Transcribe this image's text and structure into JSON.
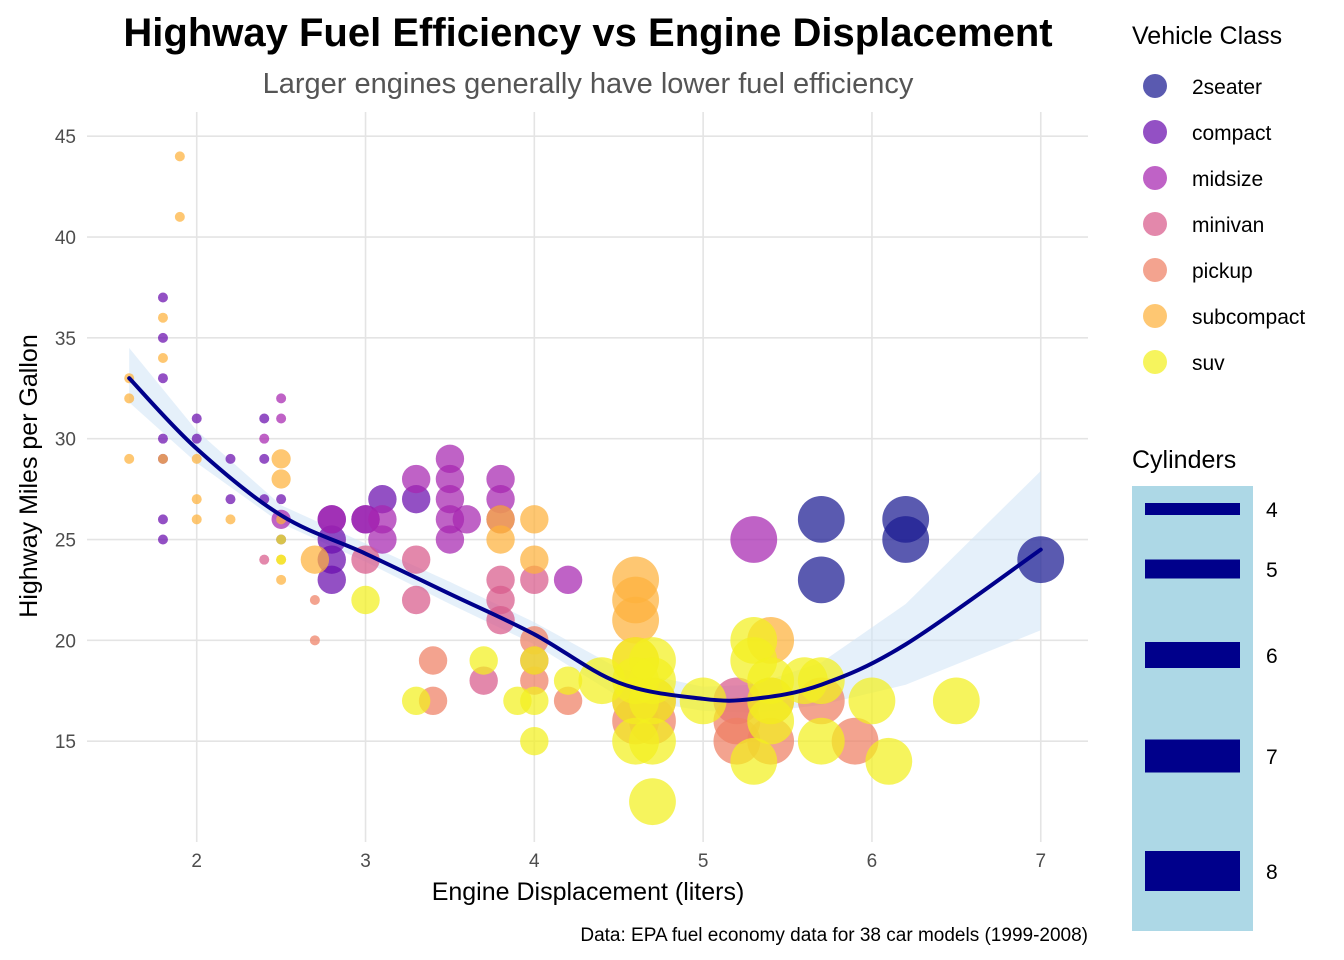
{
  "colors": {
    "background": "#ffffff",
    "grid": "#e4e4e4",
    "smooth_line": "#00008b",
    "confidence_band": "#cfe3f5",
    "size_legend_bg": "#add8e6",
    "size_legend_key": "#00008b"
  },
  "chart_data": {
    "type": "scatter",
    "title": "Highway Fuel Efficiency vs Engine Displacement",
    "subtitle": "Larger engines generally have lower fuel efficiency",
    "xlabel": "Engine Displacement (liters)",
    "ylabel": "Highway Miles per Gallon",
    "caption": "Data: EPA fuel economy data for 38 car models (1999-2008)",
    "xlim": [
      1.35,
      7.28
    ],
    "ylim": [
      10.0,
      46.2
    ],
    "x_ticks": [
      2,
      3,
      4,
      5,
      6,
      7
    ],
    "y_ticks": [
      15,
      20,
      25,
      30,
      35,
      40,
      45
    ],
    "grid": true,
    "color_legend": {
      "title": "Vehicle Class",
      "position": "top-right",
      "entries": [
        {
          "name": "2seater",
          "color": "#1a1a92"
        },
        {
          "name": "compact",
          "color": "#6a0dad"
        },
        {
          "name": "midsize",
          "color": "#a625b0"
        },
        {
          "name": "minivan",
          "color": "#d85a8a"
        },
        {
          "name": "pickup",
          "color": "#ee8064"
        },
        {
          "name": "subcompact",
          "color": "#fdb23c"
        },
        {
          "name": "suv",
          "color": "#f2f01e"
        }
      ]
    },
    "size_legend": {
      "title": "Cylinders",
      "position": "right",
      "entries": [
        {
          "label": "4",
          "value": 4
        },
        {
          "label": "5",
          "value": 5
        },
        {
          "label": "6",
          "value": 6
        },
        {
          "label": "7",
          "value": 7
        },
        {
          "label": "8",
          "value": 8
        }
      ]
    },
    "smooth": {
      "x": [
        1.6,
        2.0,
        2.5,
        3.0,
        3.5,
        4.0,
        4.5,
        5.0,
        5.3,
        5.7,
        6.2,
        7.0
      ],
      "y": [
        33.0,
        29.5,
        26.2,
        24.3,
        22.3,
        20.3,
        17.9,
        17.1,
        17.1,
        17.8,
        19.8,
        24.5
      ],
      "band_lower": [
        31.8,
        28.8,
        25.8,
        23.9,
        21.8,
        19.8,
        17.2,
        16.5,
        16.4,
        16.8,
        17.8,
        20.5
      ],
      "band_upper": [
        34.5,
        30.4,
        26.7,
        24.8,
        22.9,
        20.9,
        18.6,
        17.7,
        17.8,
        18.9,
        21.8,
        28.4
      ]
    },
    "series": [
      {
        "name": "2seater",
        "points": [
          {
            "x": 5.7,
            "y": 26,
            "cyl": 8
          },
          {
            "x": 5.7,
            "y": 23,
            "cyl": 8
          },
          {
            "x": 6.2,
            "y": 26,
            "cyl": 8
          },
          {
            "x": 6.2,
            "y": 25,
            "cyl": 8
          },
          {
            "x": 7.0,
            "y": 24,
            "cyl": 8
          }
        ]
      },
      {
        "name": "compact",
        "points": [
          {
            "x": 1.8,
            "y": 37,
            "cyl": 4
          },
          {
            "x": 1.8,
            "y": 35,
            "cyl": 4
          },
          {
            "x": 1.8,
            "y": 33,
            "cyl": 4
          },
          {
            "x": 1.8,
            "y": 30,
            "cyl": 4
          },
          {
            "x": 1.8,
            "y": 29,
            "cyl": 4
          },
          {
            "x": 1.8,
            "y": 26,
            "cyl": 4
          },
          {
            "x": 1.8,
            "y": 25,
            "cyl": 4
          },
          {
            "x": 2.0,
            "y": 31,
            "cyl": 4
          },
          {
            "x": 2.0,
            "y": 30,
            "cyl": 4
          },
          {
            "x": 2.2,
            "y": 29,
            "cyl": 4
          },
          {
            "x": 2.2,
            "y": 27,
            "cyl": 4
          },
          {
            "x": 2.4,
            "y": 31,
            "cyl": 4
          },
          {
            "x": 2.4,
            "y": 29,
            "cyl": 4
          },
          {
            "x": 2.4,
            "y": 27,
            "cyl": 4
          },
          {
            "x": 2.5,
            "y": 25,
            "cyl": 4
          },
          {
            "x": 2.5,
            "y": 27,
            "cyl": 4
          },
          {
            "x": 2.8,
            "y": 26,
            "cyl": 6
          },
          {
            "x": 2.8,
            "y": 25,
            "cyl": 6
          },
          {
            "x": 2.8,
            "y": 24,
            "cyl": 6
          },
          {
            "x": 2.8,
            "y": 23,
            "cyl": 6
          },
          {
            "x": 3.0,
            "y": 26,
            "cyl": 6
          },
          {
            "x": 3.1,
            "y": 27,
            "cyl": 6
          },
          {
            "x": 3.3,
            "y": 27,
            "cyl": 6
          }
        ]
      },
      {
        "name": "midsize",
        "points": [
          {
            "x": 2.4,
            "y": 30,
            "cyl": 4
          },
          {
            "x": 2.5,
            "y": 32,
            "cyl": 4
          },
          {
            "x": 2.5,
            "y": 31,
            "cyl": 4
          },
          {
            "x": 2.5,
            "y": 26,
            "cyl": 5
          },
          {
            "x": 2.8,
            "y": 26,
            "cyl": 6
          },
          {
            "x": 3.0,
            "y": 26,
            "cyl": 6
          },
          {
            "x": 3.1,
            "y": 26,
            "cyl": 6
          },
          {
            "x": 3.1,
            "y": 25,
            "cyl": 6
          },
          {
            "x": 3.3,
            "y": 28,
            "cyl": 6
          },
          {
            "x": 3.5,
            "y": 29,
            "cyl": 6
          },
          {
            "x": 3.5,
            "y": 28,
            "cyl": 6
          },
          {
            "x": 3.5,
            "y": 27,
            "cyl": 6
          },
          {
            "x": 3.5,
            "y": 26,
            "cyl": 6
          },
          {
            "x": 3.5,
            "y": 25,
            "cyl": 6
          },
          {
            "x": 3.6,
            "y": 26,
            "cyl": 6
          },
          {
            "x": 3.8,
            "y": 28,
            "cyl": 6
          },
          {
            "x": 3.8,
            "y": 27,
            "cyl": 6
          },
          {
            "x": 3.8,
            "y": 26,
            "cyl": 6
          },
          {
            "x": 4.2,
            "y": 23,
            "cyl": 6
          },
          {
            "x": 5.3,
            "y": 25,
            "cyl": 8
          }
        ]
      },
      {
        "name": "minivan",
        "points": [
          {
            "x": 2.4,
            "y": 24,
            "cyl": 4
          },
          {
            "x": 3.0,
            "y": 24,
            "cyl": 6
          },
          {
            "x": 3.3,
            "y": 24,
            "cyl": 6
          },
          {
            "x": 3.3,
            "y": 22,
            "cyl": 6
          },
          {
            "x": 3.8,
            "y": 23,
            "cyl": 6
          },
          {
            "x": 3.8,
            "y": 22,
            "cyl": 6
          },
          {
            "x": 3.8,
            "y": 21,
            "cyl": 6
          },
          {
            "x": 4.0,
            "y": 23,
            "cyl": 6
          },
          {
            "x": 4.0,
            "y": 19,
            "cyl": 6
          },
          {
            "x": 3.7,
            "y": 18,
            "cyl": 6
          },
          {
            "x": 5.2,
            "y": 17,
            "cyl": 8
          }
        ]
      },
      {
        "name": "pickup",
        "points": [
          {
            "x": 2.7,
            "y": 22,
            "cyl": 4
          },
          {
            "x": 2.7,
            "y": 20,
            "cyl": 4
          },
          {
            "x": 3.4,
            "y": 19,
            "cyl": 6
          },
          {
            "x": 3.4,
            "y": 17,
            "cyl": 6
          },
          {
            "x": 4.0,
            "y": 20,
            "cyl": 6
          },
          {
            "x": 4.0,
            "y": 18,
            "cyl": 6
          },
          {
            "x": 4.2,
            "y": 17,
            "cyl": 6
          },
          {
            "x": 4.6,
            "y": 17,
            "cyl": 8
          },
          {
            "x": 4.6,
            "y": 16,
            "cyl": 8
          },
          {
            "x": 4.7,
            "y": 17,
            "cyl": 8
          },
          {
            "x": 4.7,
            "y": 16,
            "cyl": 8
          },
          {
            "x": 5.2,
            "y": 16,
            "cyl": 8
          },
          {
            "x": 5.2,
            "y": 15,
            "cyl": 8
          },
          {
            "x": 5.4,
            "y": 17,
            "cyl": 8
          },
          {
            "x": 5.4,
            "y": 15,
            "cyl": 8
          },
          {
            "x": 5.7,
            "y": 17,
            "cyl": 8
          },
          {
            "x": 5.9,
            "y": 15,
            "cyl": 8
          }
        ]
      },
      {
        "name": "subcompact",
        "points": [
          {
            "x": 1.6,
            "y": 33,
            "cyl": 4
          },
          {
            "x": 1.6,
            "y": 32,
            "cyl": 4
          },
          {
            "x": 1.6,
            "y": 29,
            "cyl": 4
          },
          {
            "x": 1.8,
            "y": 36,
            "cyl": 4
          },
          {
            "x": 1.8,
            "y": 34,
            "cyl": 4
          },
          {
            "x": 1.8,
            "y": 29,
            "cyl": 4
          },
          {
            "x": 1.9,
            "y": 44,
            "cyl": 4
          },
          {
            "x": 1.9,
            "y": 41,
            "cyl": 4
          },
          {
            "x": 2.0,
            "y": 29,
            "cyl": 4
          },
          {
            "x": 2.0,
            "y": 27,
            "cyl": 4
          },
          {
            "x": 2.0,
            "y": 26,
            "cyl": 4
          },
          {
            "x": 2.2,
            "y": 26,
            "cyl": 4
          },
          {
            "x": 2.5,
            "y": 29,
            "cyl": 5
          },
          {
            "x": 2.5,
            "y": 28,
            "cyl": 5
          },
          {
            "x": 2.5,
            "y": 26,
            "cyl": 4
          },
          {
            "x": 2.5,
            "y": 24,
            "cyl": 4
          },
          {
            "x": 2.5,
            "y": 23,
            "cyl": 4
          },
          {
            "x": 2.7,
            "y": 24,
            "cyl": 6
          },
          {
            "x": 3.8,
            "y": 26,
            "cyl": 6
          },
          {
            "x": 3.8,
            "y": 25,
            "cyl": 6
          },
          {
            "x": 4.0,
            "y": 26,
            "cyl": 6
          },
          {
            "x": 4.0,
            "y": 24,
            "cyl": 6
          },
          {
            "x": 4.6,
            "y": 23,
            "cyl": 8
          },
          {
            "x": 4.6,
            "y": 22,
            "cyl": 8
          },
          {
            "x": 4.6,
            "y": 21,
            "cyl": 8
          },
          {
            "x": 4.6,
            "y": 19,
            "cyl": 8
          },
          {
            "x": 5.4,
            "y": 20,
            "cyl": 8
          }
        ]
      },
      {
        "name": "suv",
        "points": [
          {
            "x": 2.5,
            "y": 25,
            "cyl": 4
          },
          {
            "x": 2.5,
            "y": 24,
            "cyl": 4
          },
          {
            "x": 3.0,
            "y": 22,
            "cyl": 6
          },
          {
            "x": 3.3,
            "y": 17,
            "cyl": 6
          },
          {
            "x": 3.7,
            "y": 19,
            "cyl": 6
          },
          {
            "x": 3.9,
            "y": 17,
            "cyl": 6
          },
          {
            "x": 4.0,
            "y": 19,
            "cyl": 6
          },
          {
            "x": 4.0,
            "y": 17,
            "cyl": 6
          },
          {
            "x": 4.0,
            "y": 15,
            "cyl": 6
          },
          {
            "x": 4.2,
            "y": 18,
            "cyl": 6
          },
          {
            "x": 4.4,
            "y": 18,
            "cyl": 8
          },
          {
            "x": 4.6,
            "y": 19,
            "cyl": 8
          },
          {
            "x": 4.6,
            "y": 18,
            "cyl": 8
          },
          {
            "x": 4.6,
            "y": 17,
            "cyl": 8
          },
          {
            "x": 4.6,
            "y": 15,
            "cyl": 8
          },
          {
            "x": 4.7,
            "y": 19,
            "cyl": 8
          },
          {
            "x": 4.7,
            "y": 18,
            "cyl": 8
          },
          {
            "x": 4.7,
            "y": 17,
            "cyl": 8
          },
          {
            "x": 4.7,
            "y": 15,
            "cyl": 8
          },
          {
            "x": 4.7,
            "y": 12,
            "cyl": 8
          },
          {
            "x": 5.0,
            "y": 17,
            "cyl": 8
          },
          {
            "x": 5.3,
            "y": 20,
            "cyl": 8
          },
          {
            "x": 5.3,
            "y": 19,
            "cyl": 8
          },
          {
            "x": 5.3,
            "y": 14,
            "cyl": 8
          },
          {
            "x": 5.4,
            "y": 18,
            "cyl": 8
          },
          {
            "x": 5.4,
            "y": 17,
            "cyl": 8
          },
          {
            "x": 5.4,
            "y": 16,
            "cyl": 8
          },
          {
            "x": 5.6,
            "y": 18,
            "cyl": 8
          },
          {
            "x": 5.7,
            "y": 18,
            "cyl": 8
          },
          {
            "x": 5.7,
            "y": 15,
            "cyl": 8
          },
          {
            "x": 6.0,
            "y": 17,
            "cyl": 8
          },
          {
            "x": 6.1,
            "y": 14,
            "cyl": 8
          },
          {
            "x": 6.5,
            "y": 17,
            "cyl": 8
          }
        ]
      }
    ]
  }
}
